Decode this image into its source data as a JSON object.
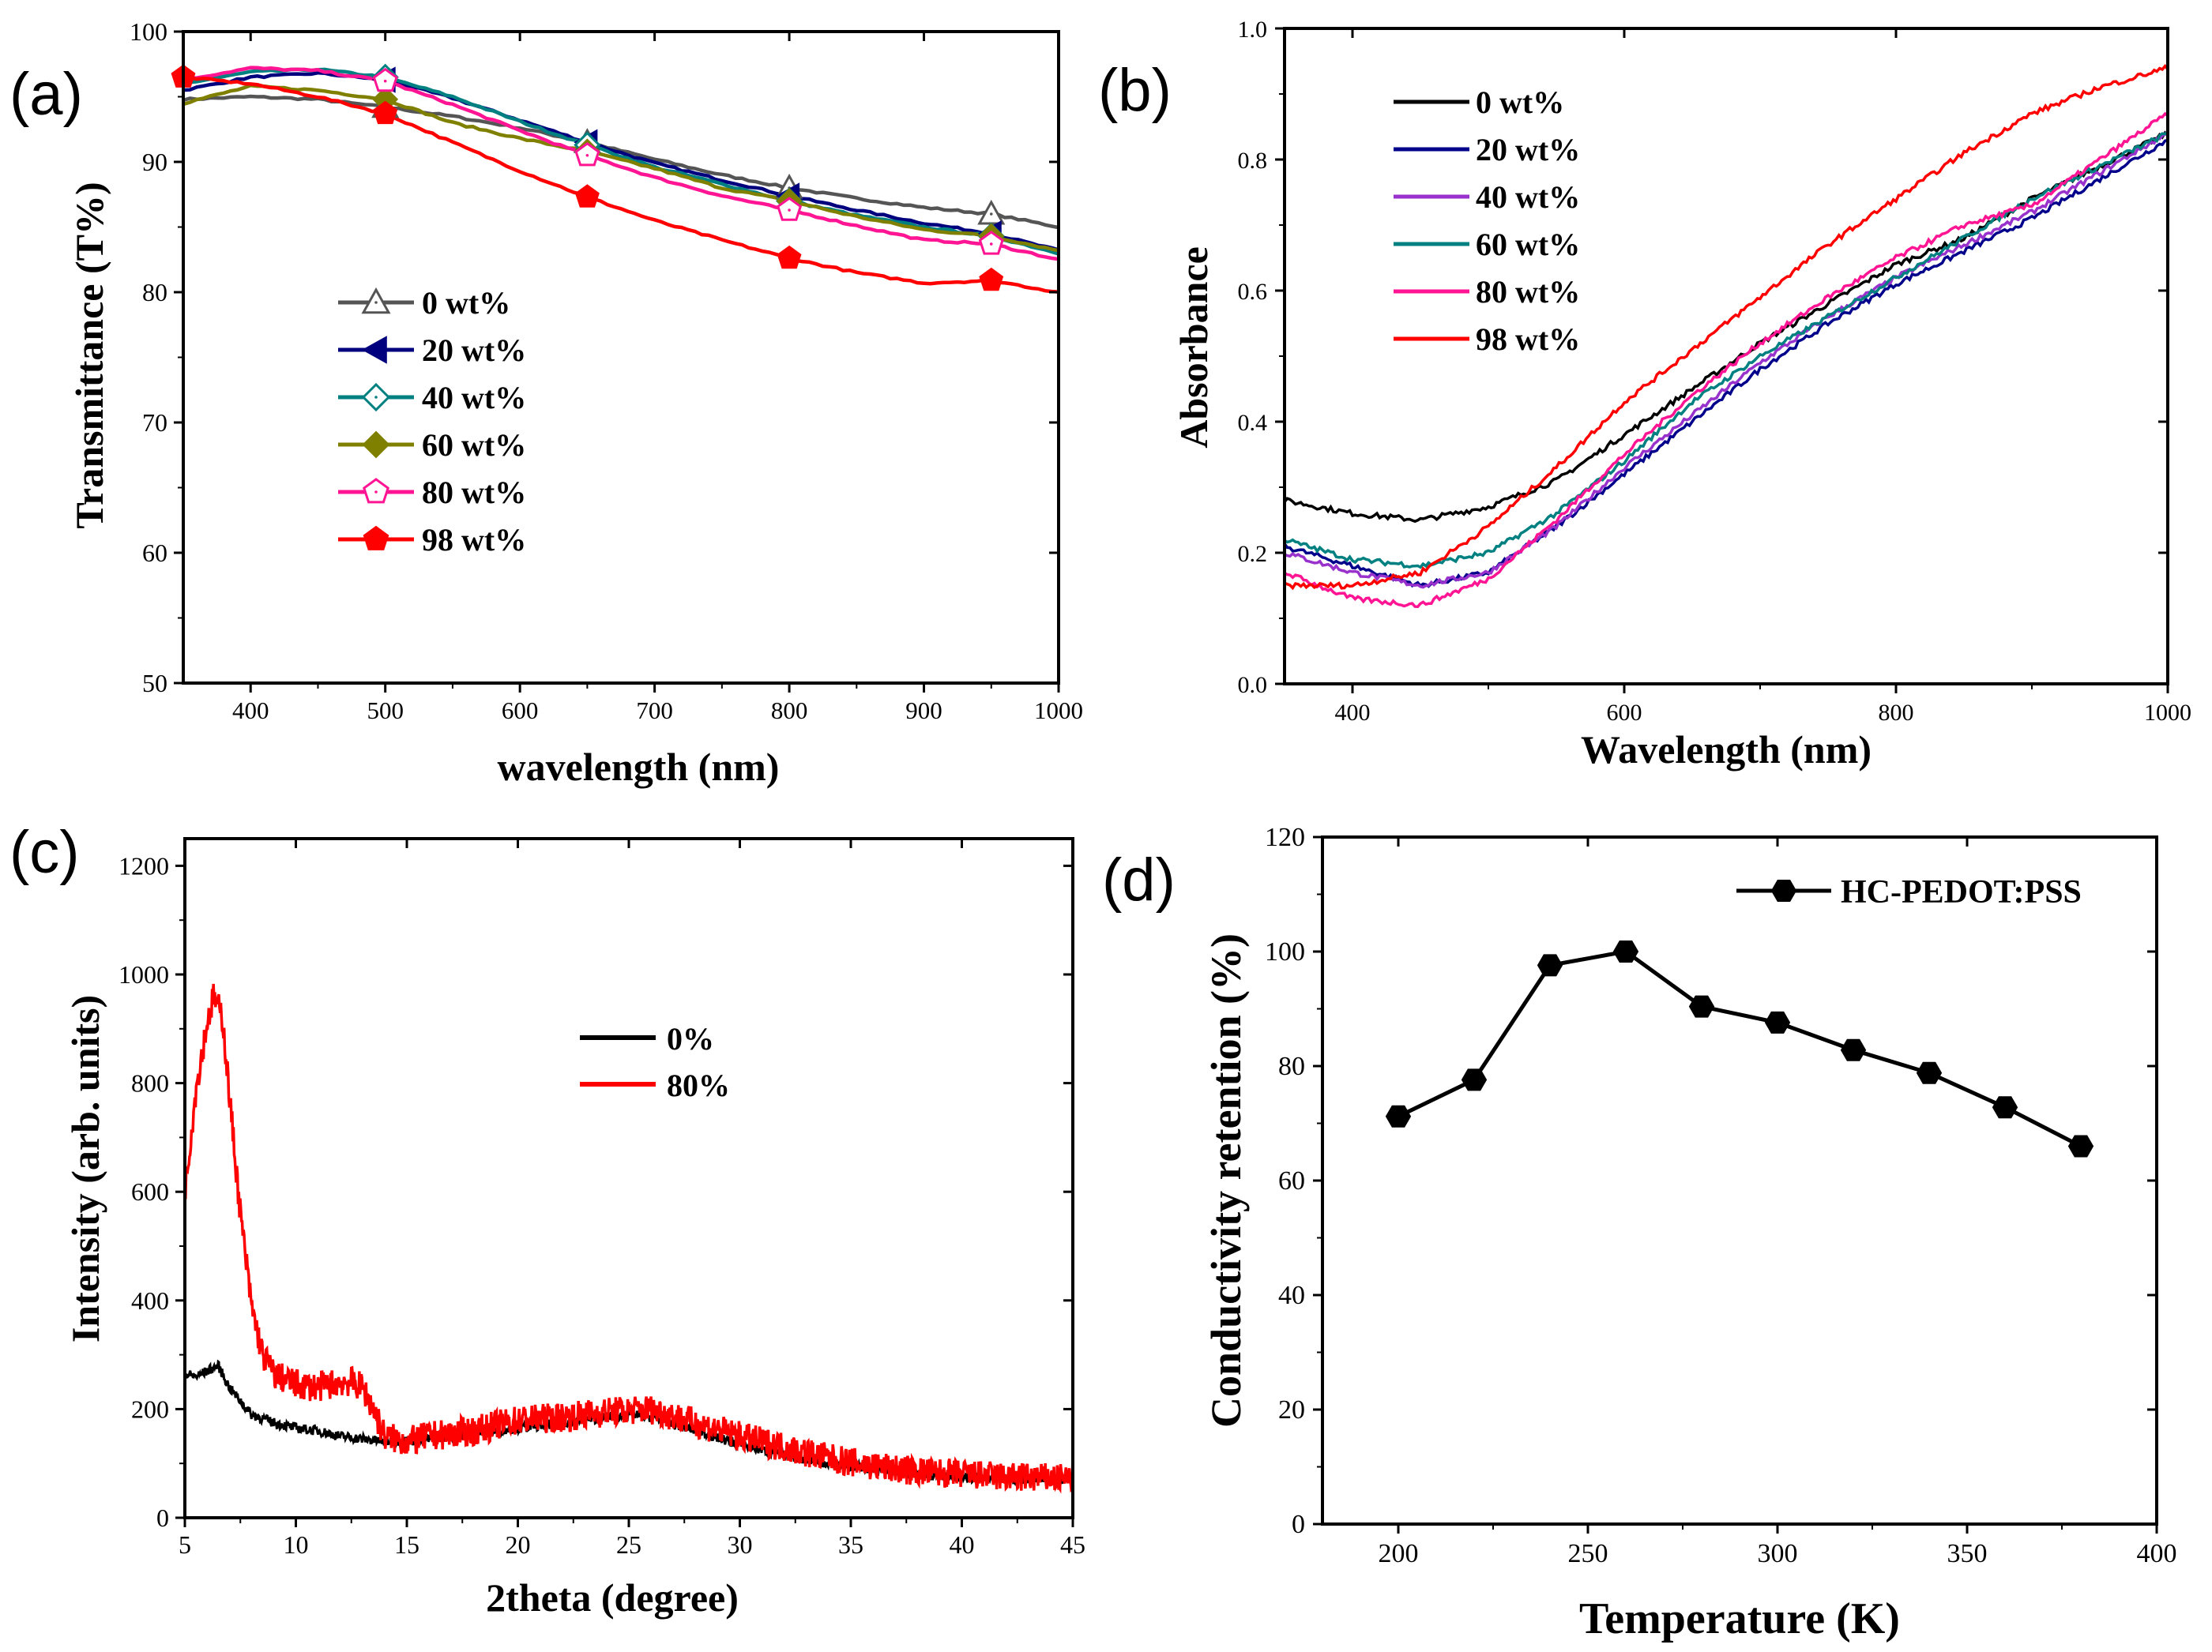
{
  "chart_data": [
    {
      "panel": "(a)",
      "type": "line",
      "xlabel": "wavelength (nm)",
      "ylabel": "Transmittance (T%)",
      "xlim": [
        350,
        1000
      ],
      "ylim": [
        50,
        100
      ],
      "xticks": [
        400,
        500,
        600,
        700,
        800,
        900,
        1000
      ],
      "yticks": [
        50,
        60,
        70,
        80,
        90,
        100
      ],
      "series": [
        {
          "name": "0 wt%",
          "color": "#555555",
          "marker": "triangle-open",
          "x": [
            350,
            400,
            450,
            500,
            550,
            600,
            650,
            700,
            750,
            800,
            850,
            900,
            950,
            1000
          ],
          "y": [
            94.8,
            95.0,
            94.8,
            94.2,
            93.5,
            92.6,
            91.5,
            90.2,
            89.0,
            88.0,
            87.2,
            86.5,
            86.0,
            85.0
          ],
          "marker_x": [
            500,
            650,
            800,
            950
          ]
        },
        {
          "name": "20 wt%",
          "color": "#00007f",
          "marker": "triangle-left",
          "x": [
            350,
            400,
            450,
            500,
            550,
            600,
            650,
            700,
            750,
            800,
            850,
            900,
            950,
            1000
          ],
          "y": [
            95.5,
            96.5,
            96.8,
            96.3,
            94.9,
            93.2,
            91.5,
            89.9,
            88.6,
            87.4,
            86.3,
            85.3,
            84.5,
            83.2
          ],
          "marker_x": [
            500,
            650,
            800,
            950
          ]
        },
        {
          "name": "40 wt%",
          "color": "#008080",
          "marker": "diamond-open",
          "x": [
            350,
            400,
            450,
            500,
            550,
            600,
            650,
            700,
            750,
            800,
            850,
            900,
            950,
            1000
          ],
          "y": [
            96.0,
            96.9,
            97.1,
            96.5,
            95.0,
            93.1,
            91.3,
            89.6,
            88.3,
            87.0,
            85.9,
            85.0,
            84.3,
            83.0
          ],
          "marker_x": [
            500,
            650,
            800,
            950
          ]
        },
        {
          "name": "60 wt%",
          "color": "#808000",
          "marker": "diamond",
          "x": [
            350,
            400,
            450,
            500,
            550,
            600,
            650,
            700,
            750,
            800,
            850,
            900,
            950,
            1000
          ],
          "y": [
            94.5,
            95.8,
            95.5,
            94.8,
            93.0,
            91.8,
            90.8,
            89.5,
            88.0,
            87.0,
            85.8,
            84.8,
            84.3,
            83.2
          ],
          "marker_x": [
            500,
            650,
            800,
            950
          ]
        },
        {
          "name": "80 wt%",
          "color": "#ff1493",
          "marker": "pentagon-open",
          "x": [
            350,
            400,
            450,
            500,
            550,
            600,
            650,
            700,
            750,
            800,
            850,
            900,
            950,
            1000
          ],
          "y": [
            96.3,
            97.2,
            97.0,
            96.2,
            94.4,
            92.4,
            90.5,
            88.8,
            87.4,
            86.3,
            85.1,
            84.0,
            83.7,
            82.5
          ],
          "marker_x": [
            500,
            650,
            800,
            950
          ]
        },
        {
          "name": "98 wt%",
          "color": "#ff0000",
          "marker": "pentagon",
          "x": [
            350,
            400,
            450,
            500,
            550,
            600,
            650,
            700,
            750,
            800,
            850,
            900,
            950,
            1000
          ],
          "y": [
            96.5,
            96.0,
            95.0,
            93.7,
            91.5,
            89.3,
            87.3,
            85.5,
            84.0,
            82.6,
            81.5,
            80.7,
            80.9,
            80.0
          ],
          "marker_x": [
            350,
            500,
            650,
            800,
            950
          ]
        }
      ]
    },
    {
      "panel": "(b)",
      "type": "line",
      "xlabel": "Wavelength (nm)",
      "ylabel": "Absorbance",
      "xlim": [
        350,
        1000
      ],
      "ylim": [
        0.0,
        1.0
      ],
      "xticks": [
        400,
        600,
        800,
        1000
      ],
      "yticks": [
        0.0,
        0.2,
        0.4,
        0.6,
        0.8,
        1.0
      ],
      "series": [
        {
          "name": "0  wt%",
          "color": "#000000",
          "x": [
            350,
            400,
            450,
            500,
            550,
            600,
            650,
            700,
            750,
            800,
            850,
            900,
            950,
            1000
          ],
          "y": [
            0.28,
            0.26,
            0.25,
            0.27,
            0.31,
            0.38,
            0.45,
            0.52,
            0.58,
            0.64,
            0.68,
            0.74,
            0.79,
            0.84
          ]
        },
        {
          "name": "20 wt%",
          "color": "#00008b",
          "x": [
            350,
            400,
            450,
            500,
            550,
            600,
            650,
            700,
            750,
            800,
            850,
            900,
            950,
            1000
          ],
          "y": [
            0.21,
            0.18,
            0.15,
            0.17,
            0.24,
            0.32,
            0.4,
            0.48,
            0.55,
            0.61,
            0.66,
            0.71,
            0.77,
            0.83
          ]
        },
        {
          "name": "40 wt%",
          "color": "#9932cc",
          "x": [
            350,
            400,
            450,
            500,
            550,
            600,
            650,
            700,
            750,
            800,
            850,
            900,
            950,
            1000
          ],
          "y": [
            0.2,
            0.17,
            0.15,
            0.17,
            0.24,
            0.33,
            0.41,
            0.49,
            0.56,
            0.62,
            0.67,
            0.72,
            0.78,
            0.84
          ]
        },
        {
          "name": "60 wt%",
          "color": "#008080",
          "x": [
            350,
            400,
            450,
            500,
            550,
            600,
            650,
            700,
            750,
            800,
            850,
            900,
            950,
            1000
          ],
          "y": [
            0.22,
            0.19,
            0.18,
            0.2,
            0.26,
            0.34,
            0.43,
            0.5,
            0.56,
            0.62,
            0.68,
            0.74,
            0.79,
            0.84
          ]
        },
        {
          "name": "80 wt%",
          "color": "#ff1493",
          "x": [
            350,
            400,
            450,
            500,
            550,
            600,
            650,
            700,
            750,
            800,
            850,
            900,
            950,
            1000
          ],
          "y": [
            0.17,
            0.13,
            0.12,
            0.16,
            0.25,
            0.35,
            0.44,
            0.52,
            0.59,
            0.65,
            0.7,
            0.73,
            0.8,
            0.87
          ]
        },
        {
          "name": "98 wt%",
          "color": "#ff0000",
          "x": [
            350,
            400,
            450,
            500,
            550,
            600,
            650,
            700,
            750,
            800,
            850,
            900,
            950,
            1000
          ],
          "y": [
            0.15,
            0.15,
            0.17,
            0.24,
            0.33,
            0.43,
            0.51,
            0.59,
            0.67,
            0.74,
            0.81,
            0.87,
            0.91,
            0.94
          ]
        }
      ]
    },
    {
      "panel": "(c)",
      "type": "line",
      "xlabel": "2theta (degree)",
      "ylabel": "Intensity (arb. units)",
      "xlim": [
        5,
        45
      ],
      "ylim": [
        0,
        1250
      ],
      "xticks": [
        5,
        10,
        15,
        20,
        25,
        30,
        35,
        40,
        45
      ],
      "yticks": [
        0,
        200,
        400,
        600,
        800,
        1000,
        1200
      ],
      "series": [
        {
          "name": "0%",
          "color": "#000000",
          "x": [
            5,
            5.5,
            6,
            6.5,
            7,
            7.5,
            8,
            9,
            10,
            11,
            12,
            13,
            14,
            16,
            18,
            20,
            22,
            24,
            25,
            26,
            28,
            30,
            32,
            34,
            36,
            38,
            40,
            42,
            45
          ],
          "y": [
            265,
            260,
            270,
            280,
            240,
            215,
            190,
            175,
            165,
            160,
            150,
            145,
            140,
            145,
            155,
            165,
            175,
            185,
            190,
            185,
            160,
            135,
            115,
            100,
            90,
            80,
            75,
            72,
            70
          ]
        },
        {
          "name": "80%",
          "color": "#ff0000",
          "x": [
            5,
            5.5,
            6,
            6.3,
            6.7,
            7,
            7.5,
            8,
            8.5,
            9,
            10,
            11,
            12,
            12.5,
            13,
            13.5,
            14,
            15,
            16,
            17,
            18,
            20,
            22,
            24,
            26,
            28,
            30,
            32,
            34,
            36,
            38,
            40,
            42,
            45
          ],
          "y": [
            600,
            790,
            910,
            960,
            920,
            780,
            560,
            390,
            300,
            265,
            245,
            240,
            250,
            250,
            240,
            200,
            150,
            140,
            150,
            155,
            160,
            180,
            185,
            195,
            200,
            175,
            150,
            130,
            110,
            95,
            85,
            80,
            75,
            72
          ]
        }
      ]
    },
    {
      "panel": "(d)",
      "type": "line",
      "xlabel": "Temperature (K)",
      "ylabel": "Conductivity retention (%)",
      "xlim": [
        180,
        400
      ],
      "ylim": [
        0,
        120
      ],
      "xticks": [
        200,
        250,
        300,
        350,
        400
      ],
      "yticks": [
        0,
        20,
        40,
        60,
        80,
        100,
        120
      ],
      "series": [
        {
          "name": "HC-PEDOT:PSS",
          "color": "#000000",
          "marker": "hexagon",
          "x": [
            200,
            220,
            240,
            260,
            280,
            300,
            320,
            340,
            360,
            380
          ],
          "y": [
            71.2,
            77.6,
            97.6,
            100.0,
            90.4,
            87.6,
            82.8,
            78.8,
            72.8,
            66.0
          ]
        }
      ]
    }
  ]
}
